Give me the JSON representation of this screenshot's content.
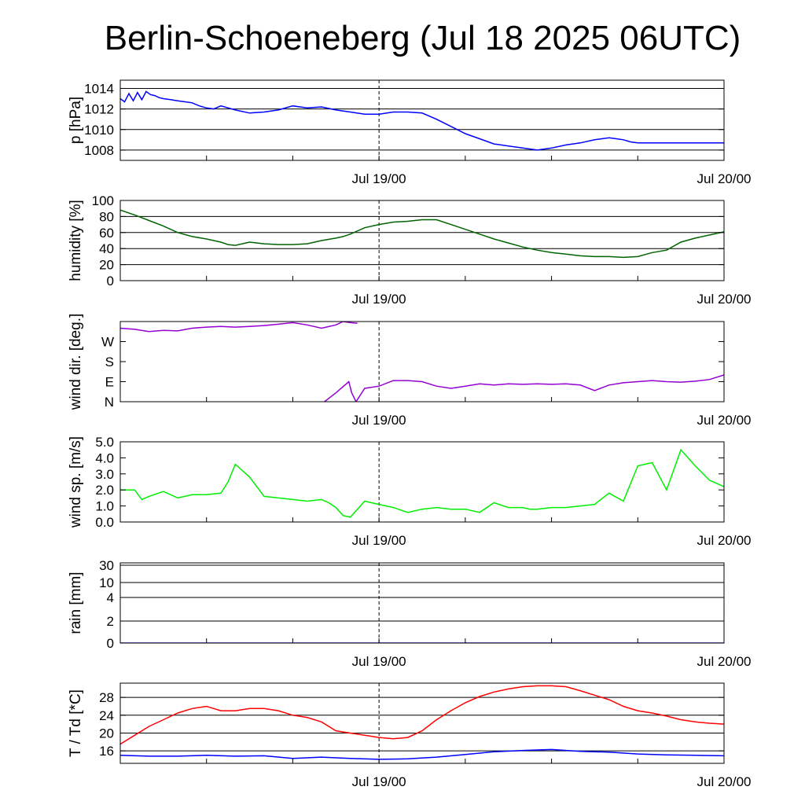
{
  "title": "Berlin-Schoeneberg (Jul 18 2025 06UTC)",
  "chart_data": [
    {
      "type": "line",
      "ylabel": "p [hPa]",
      "x_ticks": [
        "Jul 19/00",
        "Jul 20/00"
      ],
      "x_unit": "hours since Jul 18 06UTC",
      "xlim": [
        0,
        42
      ],
      "ylim": [
        1007.0,
        1014.8
      ],
      "yticks": [
        1014,
        1012,
        1010,
        1008
      ],
      "ytick_labels": [
        "1014",
        "1012",
        "1010",
        "1008"
      ],
      "grid": true,
      "series": [
        {
          "color": "#0000ff",
          "x": [
            0,
            0.3,
            0.6,
            0.9,
            1.2,
            1.5,
            1.8,
            2.1,
            2.4,
            2.7,
            3,
            3.5,
            4,
            4.5,
            5,
            5.5,
            6,
            6.5,
            7,
            8,
            9,
            10,
            11,
            12,
            13,
            14,
            15,
            16,
            17,
            18,
            19,
            20,
            21,
            22,
            23,
            24,
            25,
            26,
            27,
            28,
            29,
            30,
            31,
            32,
            33,
            34,
            34.5,
            35,
            35.5,
            36,
            37,
            38,
            39,
            40,
            41,
            42
          ],
          "values": [
            1013.0,
            1012.7,
            1013.5,
            1012.8,
            1013.6,
            1012.9,
            1013.7,
            1013.4,
            1013.3,
            1013.1,
            1013.0,
            1012.9,
            1012.8,
            1012.7,
            1012.6,
            1012.3,
            1012.1,
            1012.0,
            1012.3,
            1011.9,
            1011.6,
            1011.7,
            1011.9,
            1012.3,
            1012.1,
            1012.2,
            1011.9,
            1011.7,
            1011.5,
            1011.5,
            1011.7,
            1011.7,
            1011.6,
            1011.0,
            1010.3,
            1009.6,
            1009.1,
            1008.6,
            1008.4,
            1008.2,
            1008.0,
            1008.2,
            1008.5,
            1008.7,
            1009.0,
            1009.2,
            1009.1,
            1009.0,
            1008.8,
            1008.7,
            1008.7,
            1008.7,
            1008.7,
            1008.7,
            1008.7,
            1008.7
          ]
        }
      ]
    },
    {
      "type": "line",
      "ylabel": "humidity [%]",
      "x_ticks": [
        "Jul 19/00",
        "Jul 20/00"
      ],
      "xlim": [
        0,
        42
      ],
      "ylim": [
        0,
        100
      ],
      "yticks": [
        100,
        80,
        60,
        40,
        20,
        0
      ],
      "ytick_labels": [
        "100",
        "80",
        "60",
        "40",
        "20",
        "0"
      ],
      "grid": true,
      "series": [
        {
          "color": "#006400",
          "x": [
            0,
            1,
            2,
            3,
            4,
            5,
            6,
            7,
            7.5,
            8,
            9,
            10,
            11,
            12,
            13,
            14,
            15,
            15.5,
            16,
            17,
            18,
            19,
            20,
            21,
            22,
            23,
            24,
            25,
            26,
            27,
            28,
            29,
            30,
            31,
            32,
            33,
            34,
            35,
            36,
            37,
            38,
            39,
            40,
            41,
            42
          ],
          "values": [
            88,
            82,
            75,
            68,
            60,
            55,
            52,
            48,
            45,
            44,
            48,
            46,
            45,
            45,
            46,
            50,
            53,
            55,
            58,
            66,
            70,
            73,
            74,
            76,
            76,
            70,
            64,
            58,
            52,
            47,
            42,
            38,
            35,
            33,
            31,
            30,
            30,
            29,
            30,
            35,
            38,
            48,
            53,
            57,
            61
          ]
        }
      ]
    },
    {
      "type": "line",
      "ylabel": "wind dir. [deg.]",
      "x_ticks": [
        "Jul 19/00",
        "Jul 20/00"
      ],
      "xlim": [
        0,
        42
      ],
      "ylim": [
        0,
        360
      ],
      "yticks": [
        270,
        180,
        90,
        0
      ],
      "ytick_labels": [
        "W",
        "S",
        "E",
        "N"
      ],
      "grid": false,
      "series": [
        {
          "color": "#9400d3",
          "x": [
            0,
            1,
            2,
            3,
            4,
            5,
            6,
            7,
            8,
            9,
            10,
            11,
            12,
            13,
            14,
            15,
            15.5,
            16,
            16.5
          ],
          "values": [
            330,
            325,
            315,
            320,
            318,
            330,
            335,
            338,
            335,
            338,
            342,
            348,
            355,
            345,
            330,
            345,
            360,
            355,
            352
          ]
        },
        {
          "color": "#9400d3",
          "x": [
            14.2,
            15,
            15.9,
            16.1,
            16.4,
            17,
            18,
            19,
            20,
            21,
            22,
            23,
            24,
            25,
            26,
            27,
            28,
            29,
            30,
            31,
            32,
            33,
            34,
            35,
            36,
            37,
            38,
            39,
            40,
            41,
            42
          ],
          "values": [
            0,
            40,
            90,
            40,
            0,
            60,
            70,
            95,
            95,
            90,
            70,
            60,
            70,
            80,
            75,
            80,
            78,
            80,
            78,
            80,
            75,
            50,
            75,
            85,
            90,
            95,
            90,
            88,
            92,
            100,
            120
          ]
        }
      ]
    },
    {
      "type": "line",
      "ylabel": "wind sp. [m/s]",
      "x_ticks": [
        "Jul 19/00",
        "Jul 20/00"
      ],
      "xlim": [
        0,
        42
      ],
      "ylim": [
        0,
        5.0
      ],
      "yticks": [
        5,
        4,
        3,
        2,
        1,
        0
      ],
      "ytick_labels": [
        "5.0",
        "4.0",
        "3.0",
        "2.0",
        "1.0",
        "0.0"
      ],
      "grid": false,
      "series": [
        {
          "color": "#00ee00",
          "x": [
            0,
            1,
            1.5,
            2,
            3,
            4,
            5,
            6,
            7,
            7.5,
            8,
            9,
            10,
            11,
            12,
            13,
            14,
            14.5,
            15,
            15.5,
            16,
            17,
            18,
            19,
            20,
            21,
            22,
            23,
            24,
            25,
            26,
            27,
            28,
            28.5,
            29,
            30,
            31,
            32,
            33,
            34,
            35,
            36,
            37,
            38,
            39,
            40,
            41,
            42
          ],
          "values": [
            2.0,
            2.0,
            1.4,
            1.6,
            1.9,
            1.5,
            1.7,
            1.7,
            1.8,
            2.5,
            3.6,
            2.8,
            1.6,
            1.5,
            1.4,
            1.3,
            1.4,
            1.2,
            0.9,
            0.4,
            0.3,
            1.3,
            1.1,
            0.9,
            0.6,
            0.8,
            0.9,
            0.8,
            0.8,
            0.6,
            1.2,
            0.9,
            0.9,
            0.8,
            0.8,
            0.9,
            0.9,
            1.0,
            1.1,
            1.8,
            1.3,
            3.5,
            3.7,
            2.0,
            4.5,
            3.5,
            2.6,
            2.2
          ]
        }
      ]
    },
    {
      "type": "line",
      "ylabel": "rain [mm]",
      "x_ticks": [
        "Jul 19/00",
        "Jul 20/00"
      ],
      "xlim": [
        0,
        42
      ],
      "yticks": [
        30,
        10,
        4,
        2,
        0
      ],
      "ytick_labels": [
        "30",
        "10",
        "4",
        "2",
        "0"
      ],
      "grid": true,
      "series": [
        {
          "color": "#0000ff",
          "x": [
            0,
            42
          ],
          "values": [
            0,
            0
          ]
        }
      ]
    },
    {
      "type": "line",
      "ylabel": "T / Td [*C]",
      "x_ticks": [
        "Jul 19/00",
        "Jul 20/00"
      ],
      "xlim": [
        0,
        42
      ],
      "ylim": [
        13.2,
        31.2
      ],
      "yticks": [
        28,
        24,
        20,
        16
      ],
      "ytick_labels": [
        "28",
        "24",
        "20",
        "16"
      ],
      "grid": true,
      "series": [
        {
          "color": "#ff0000",
          "x": [
            0,
            1,
            2,
            3,
            4,
            5,
            6,
            6.5,
            7,
            8,
            9,
            10,
            11,
            12,
            13,
            14,
            15,
            16,
            17,
            18,
            19,
            20,
            21,
            22,
            23,
            24,
            25,
            26,
            27,
            28,
            29,
            30,
            31,
            32,
            33,
            34,
            35,
            36,
            37,
            38,
            39,
            40,
            41,
            42
          ],
          "values": [
            17.5,
            19.5,
            21.5,
            23.0,
            24.5,
            25.5,
            26.0,
            25.5,
            25.0,
            25.0,
            25.5,
            25.5,
            25.0,
            24.0,
            23.5,
            22.5,
            20.5,
            20.0,
            19.5,
            19.0,
            18.7,
            19.0,
            20.5,
            23.0,
            25.0,
            26.8,
            28.2,
            29.2,
            29.9,
            30.4,
            30.6,
            30.6,
            30.4,
            29.5,
            28.5,
            27.5,
            26.0,
            25.0,
            24.5,
            23.8,
            23.0,
            22.5,
            22.2,
            22.0
          ]
        },
        {
          "color": "#0000ff",
          "x": [
            0,
            2,
            4,
            6,
            8,
            10,
            12,
            14,
            16,
            18,
            20,
            22,
            24,
            26,
            28,
            30,
            32,
            34,
            36,
            38,
            40,
            42
          ],
          "values": [
            15.0,
            14.8,
            14.8,
            15.0,
            14.8,
            14.9,
            14.3,
            14.6,
            14.3,
            14.1,
            14.2,
            14.6,
            15.2,
            15.8,
            16.1,
            16.3,
            15.9,
            15.7,
            15.3,
            15.1,
            15.0,
            14.9
          ]
        }
      ]
    }
  ]
}
